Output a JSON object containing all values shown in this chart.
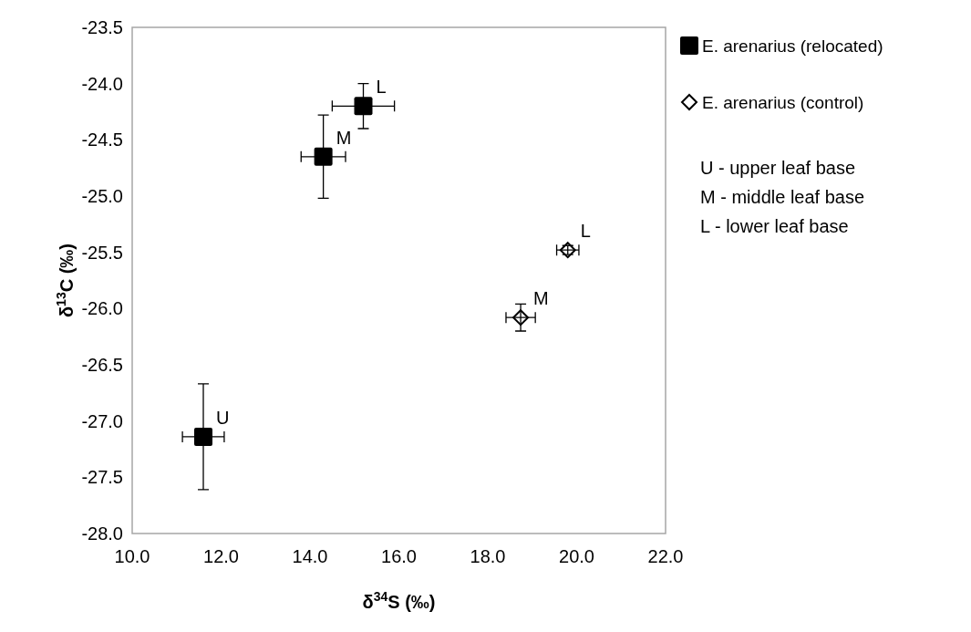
{
  "chart_data": {
    "type": "scatter",
    "xlabel": "δ$^{34}$S (‰)",
    "ylabel": "δ$^{13}$C (‰)",
    "xlim": [
      10,
      22
    ],
    "xticks": [
      {
        "value": 10,
        "label": "10.0"
      },
      {
        "value": 12,
        "label": "12.0"
      },
      {
        "value": 14,
        "label": "14.0"
      },
      {
        "value": 16,
        "label": "16.0"
      },
      {
        "value": 18,
        "label": "18.0"
      },
      {
        "value": 20,
        "label": "20.0"
      },
      {
        "value": 22,
        "label": "22.0"
      }
    ],
    "ylim": [
      -28,
      -23.5
    ],
    "yticks": [
      {
        "value": -28,
        "label": "-28.0"
      },
      {
        "value": -27.5,
        "label": "-27.5"
      },
      {
        "value": -27,
        "label": "-27.0"
      },
      {
        "value": -26.5,
        "label": "-26.5"
      },
      {
        "value": -26,
        "label": "-26.0"
      },
      {
        "value": -25.5,
        "label": "-25.5"
      },
      {
        "value": -25,
        "label": "-25.0"
      },
      {
        "value": -24.5,
        "label": "-24.5"
      },
      {
        "value": -24,
        "label": "-24.0"
      },
      {
        "value": -23.5,
        "label": "-23.5"
      }
    ],
    "legend": "right",
    "grid": false,
    "series": [
      {
        "name": "E. arenarius (relocated)",
        "color": "#000000",
        "marker": "square",
        "x": [
          11.6,
          14.3,
          15.2
        ],
        "values": [
          -27.14,
          -24.65,
          -24.2
        ],
        "errors": [
          0.47,
          0.37,
          0.2
        ],
        "xerrors": [
          0.47,
          0.5,
          0.7
        ]
      },
      {
        "name": "E. arenarius (control)",
        "color": "#000000",
        "marker": "diamond",
        "x": [
          18.74,
          19.8
        ],
        "values": [
          -26.08,
          -25.48
        ],
        "errors": [
          0.12,
          0.04
        ],
        "xerrors": [
          0.33,
          0.25
        ]
      }
    ],
    "annotations": [
      {
        "text": "U",
        "x": 11.6,
        "y": -27.14
      },
      {
        "text": "M",
        "x": 14.3,
        "y": -24.65
      },
      {
        "text": "L",
        "x": 15.2,
        "y": -24.2
      },
      {
        "text": "M",
        "x": 18.74,
        "y": -26.08
      },
      {
        "text": "L",
        "x": 19.8,
        "y": -25.48
      },
      "U - upper leaf base",
      "M - middle leaf base",
      "L - lower leaf base"
    ]
  }
}
